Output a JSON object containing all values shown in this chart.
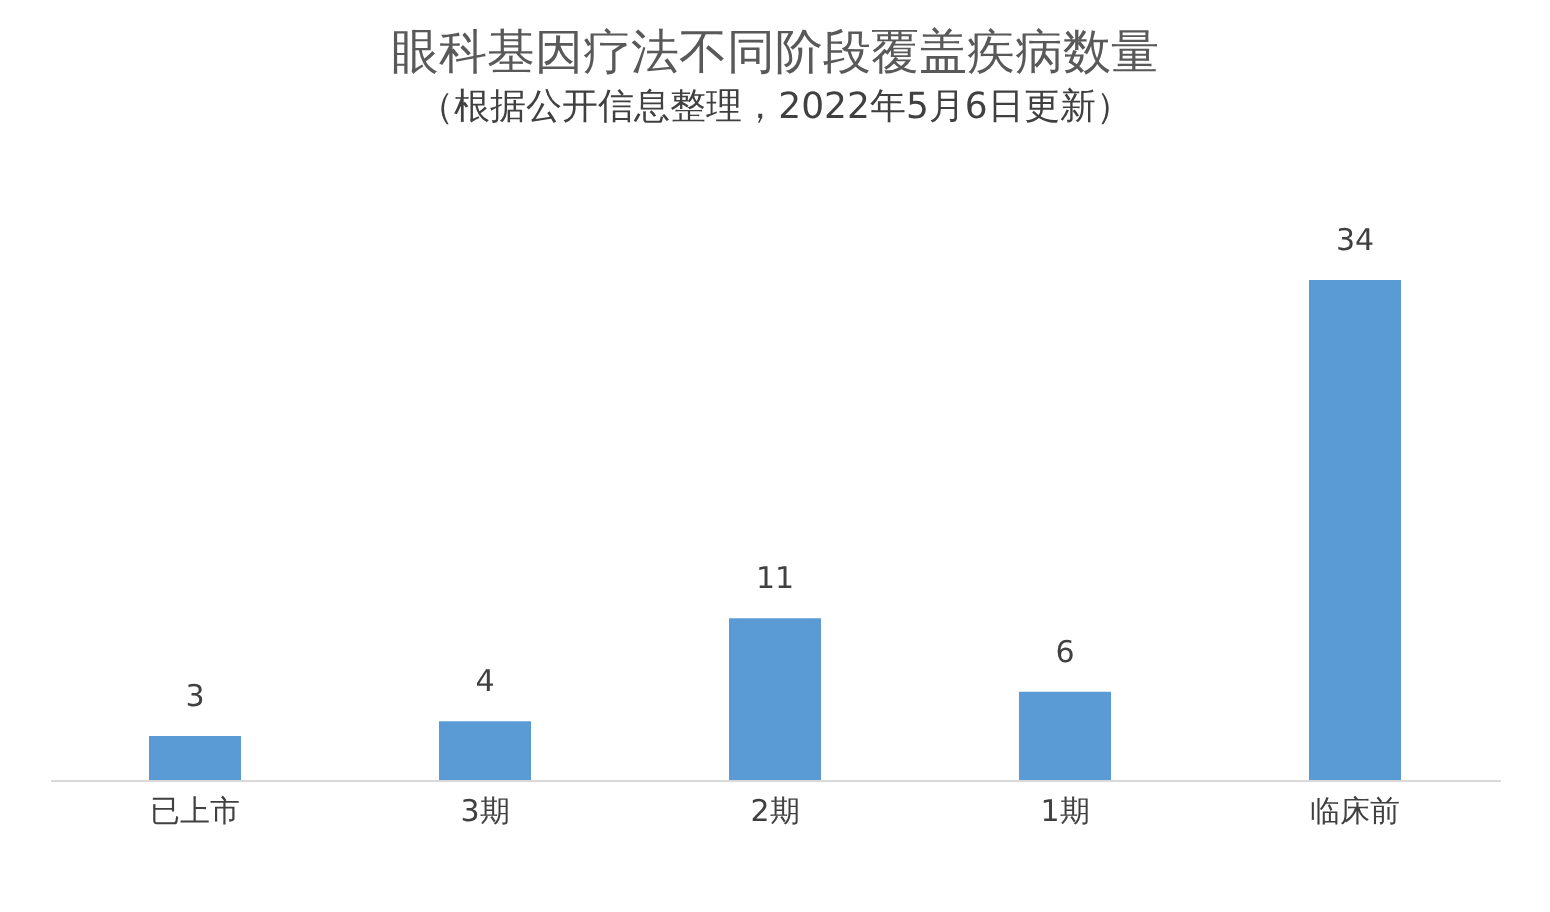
{
  "chart_data": {
    "type": "bar",
    "title": "眼科基因疗法不同阶段覆盖疾病数量",
    "subtitle": "（根据公开信息整理，2022年5月6日更新）",
    "categories": [
      "已上市",
      "3期",
      "2期",
      "1期",
      "临床前"
    ],
    "values": [
      3,
      4,
      11,
      6,
      34
    ],
    "color": "#5b9bd5",
    "data_labels": true,
    "grid": false
  }
}
